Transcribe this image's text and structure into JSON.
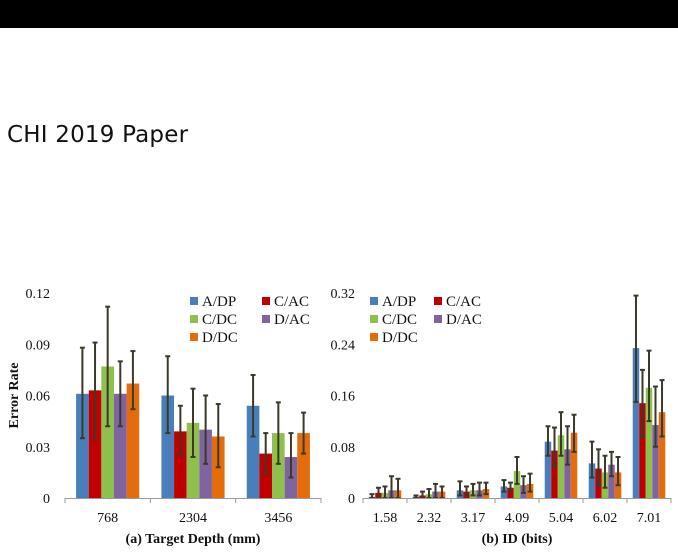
{
  "page": {
    "header_title": "CHI 2019 Paper"
  },
  "colors": {
    "A/DP": "#4a7ebb",
    "C/AC": "#c00000",
    "C/DC": "#8fc04d",
    "D/AC": "#8064a2",
    "D/DC": "#e46c0a",
    "errorbar": "#3b3a2a"
  },
  "chart_data": [
    {
      "type": "bar",
      "caption": "(a) Target Depth (mm)",
      "ylabel": "Error Rate",
      "ylim": [
        0,
        0.12
      ],
      "yticks": [
        "0",
        "0.03",
        "0.06",
        "0.09",
        "0.12"
      ],
      "categories": [
        "768",
        "2304",
        "3456"
      ],
      "legend_position": "top-right",
      "series": [
        {
          "name": "A/DP",
          "values": [
            0.061,
            0.06,
            0.054
          ],
          "error_low": [
            0.035,
            0.038,
            0.036
          ],
          "error_high": [
            0.088,
            0.083,
            0.072
          ]
        },
        {
          "name": "C/AC",
          "values": [
            0.063,
            0.039,
            0.026
          ],
          "error_low": [
            0.035,
            0.025,
            0.014
          ],
          "error_high": [
            0.091,
            0.054,
            0.038
          ]
        },
        {
          "name": "C/DC",
          "values": [
            0.077,
            0.044,
            0.038
          ],
          "error_low": [
            0.042,
            0.024,
            0.02
          ],
          "error_high": [
            0.112,
            0.064,
            0.056
          ]
        },
        {
          "name": "D/AC",
          "values": [
            0.061,
            0.04,
            0.024
          ],
          "error_low": [
            0.042,
            0.02,
            0.012
          ],
          "error_high": [
            0.08,
            0.06,
            0.038
          ]
        },
        {
          "name": "D/DC",
          "values": [
            0.067,
            0.036,
            0.038
          ],
          "error_low": [
            0.052,
            0.018,
            0.026
          ],
          "error_high": [
            0.086,
            0.055,
            0.05
          ]
        }
      ]
    },
    {
      "type": "bar",
      "caption": "(b) ID (bits)",
      "ylim": [
        0,
        0.32
      ],
      "yticks": [
        "0",
        "0.08",
        "0.16",
        "0.24",
        "0.32"
      ],
      "categories": [
        "1.58",
        "2.32",
        "3.17",
        "4.09",
        "5.04",
        "6.02",
        "7.01"
      ],
      "legend_position": "top-left",
      "series": [
        {
          "name": "A/DP",
          "values": [
            0.002,
            0.002,
            0.012,
            0.018,
            0.088,
            0.054,
            0.234
          ],
          "error_low": [
            0.0,
            0.0,
            0.004,
            0.01,
            0.066,
            0.032,
            0.15
          ],
          "error_high": [
            0.006,
            0.004,
            0.026,
            0.028,
            0.112,
            0.088,
            0.316
          ]
        },
        {
          "name": "C/AC",
          "values": [
            0.008,
            0.004,
            0.01,
            0.016,
            0.074,
            0.046,
            0.148
          ],
          "error_low": [
            0.0,
            0.0,
            0.004,
            0.01,
            0.05,
            0.02,
            0.096
          ],
          "error_high": [
            0.016,
            0.01,
            0.018,
            0.024,
            0.11,
            0.076,
            0.2
          ]
        },
        {
          "name": "C/DC",
          "values": [
            0.008,
            0.006,
            0.012,
            0.042,
            0.098,
            0.04,
            0.172
          ],
          "error_low": [
            0.0,
            0.0,
            0.004,
            0.022,
            0.066,
            0.016,
            0.12
          ],
          "error_high": [
            0.018,
            0.014,
            0.022,
            0.064,
            0.134,
            0.066,
            0.23
          ]
        },
        {
          "name": "D/AC",
          "values": [
            0.012,
            0.01,
            0.012,
            0.02,
            0.076,
            0.052,
            0.114
          ],
          "error_low": [
            0.0,
            0.0,
            0.004,
            0.008,
            0.052,
            0.034,
            0.08
          ],
          "error_high": [
            0.034,
            0.022,
            0.024,
            0.034,
            0.112,
            0.072,
            0.174
          ]
        },
        {
          "name": "D/DC",
          "values": [
            0.012,
            0.01,
            0.014,
            0.022,
            0.102,
            0.04,
            0.134
          ],
          "error_low": [
            0.0,
            0.0,
            0.006,
            0.01,
            0.072,
            0.02,
            0.096
          ],
          "error_high": [
            0.03,
            0.018,
            0.024,
            0.038,
            0.13,
            0.064,
            0.184
          ]
        }
      ]
    }
  ]
}
